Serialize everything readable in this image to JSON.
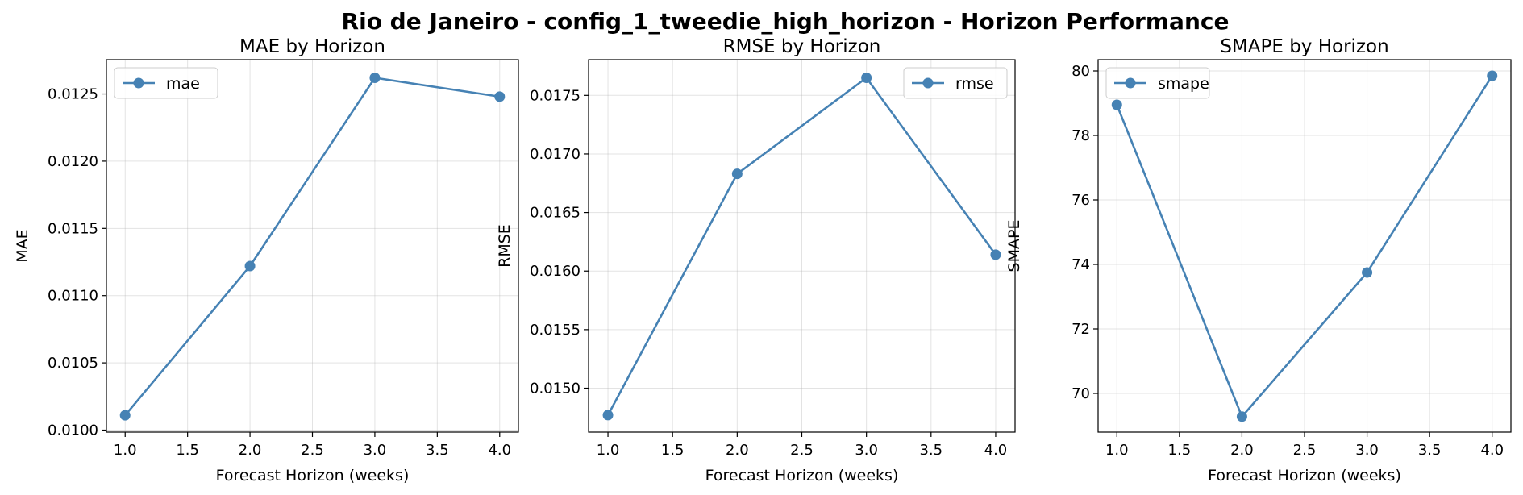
{
  "figure": {
    "title": "Rio de Janeiro - config_1_tweedie_high_horizon - Horizon Performance",
    "line_color": "#4682b4"
  },
  "chart_data": [
    {
      "type": "line",
      "title": "MAE by Horizon",
      "xlabel": "Forecast Horizon (weeks)",
      "ylabel": "MAE",
      "x": [
        1.0,
        2.0,
        3.0,
        4.0
      ],
      "series": [
        {
          "name": "mae",
          "values": [
            0.01011,
            0.01122,
            0.01262,
            0.01248
          ]
        }
      ],
      "xlim": [
        0.85,
        4.15
      ],
      "ylim": [
        0.009985,
        0.012755
      ],
      "xticks": [
        1.0,
        1.5,
        2.0,
        2.5,
        3.0,
        3.5,
        4.0
      ],
      "xtick_labels": [
        "1.0",
        "1.5",
        "2.0",
        "2.5",
        "3.0",
        "3.5",
        "4.0"
      ],
      "yticks": [
        0.01,
        0.0105,
        0.011,
        0.0115,
        0.012,
        0.0125
      ],
      "ytick_labels": [
        "0.0100",
        "0.0105",
        "0.0110",
        "0.0115",
        "0.0120",
        "0.0125"
      ],
      "grid": true,
      "legend": "upper left"
    },
    {
      "type": "line",
      "title": "RMSE by Horizon",
      "xlabel": "Forecast Horizon (weeks)",
      "ylabel": "RMSE",
      "x": [
        1.0,
        2.0,
        3.0,
        4.0
      ],
      "series": [
        {
          "name": "rmse",
          "values": [
            0.01477,
            0.01683,
            0.01765,
            0.01614
          ]
        }
      ],
      "xlim": [
        0.85,
        4.15
      ],
      "ylim": [
        0.014625,
        0.017805
      ],
      "xticks": [
        1.0,
        1.5,
        2.0,
        2.5,
        3.0,
        3.5,
        4.0
      ],
      "xtick_labels": [
        "1.0",
        "1.5",
        "2.0",
        "2.5",
        "3.0",
        "3.5",
        "4.0"
      ],
      "yticks": [
        0.015,
        0.0155,
        0.016,
        0.0165,
        0.017,
        0.0175
      ],
      "ytick_labels": [
        "0.0150",
        "0.0155",
        "0.0160",
        "0.0165",
        "0.0170",
        "0.0175"
      ],
      "grid": true,
      "legend": "upper right"
    },
    {
      "type": "line",
      "title": "SMAPE by Horizon",
      "xlabel": "Forecast Horizon (weeks)",
      "ylabel": "SMAPE",
      "x": [
        1.0,
        2.0,
        3.0,
        4.0
      ],
      "series": [
        {
          "name": "smape",
          "values": [
            78.95,
            69.28,
            73.75,
            79.85
          ]
        }
      ],
      "xlim": [
        0.85,
        4.15
      ],
      "ylim": [
        68.8,
        80.35
      ],
      "xticks": [
        1.0,
        1.5,
        2.0,
        2.5,
        3.0,
        3.5,
        4.0
      ],
      "xtick_labels": [
        "1.0",
        "1.5",
        "2.0",
        "2.5",
        "3.0",
        "3.5",
        "4.0"
      ],
      "yticks": [
        70,
        72,
        74,
        76,
        78,
        80
      ],
      "ytick_labels": [
        "70",
        "72",
        "74",
        "76",
        "78",
        "80"
      ],
      "grid": true,
      "legend": "upper left"
    }
  ]
}
